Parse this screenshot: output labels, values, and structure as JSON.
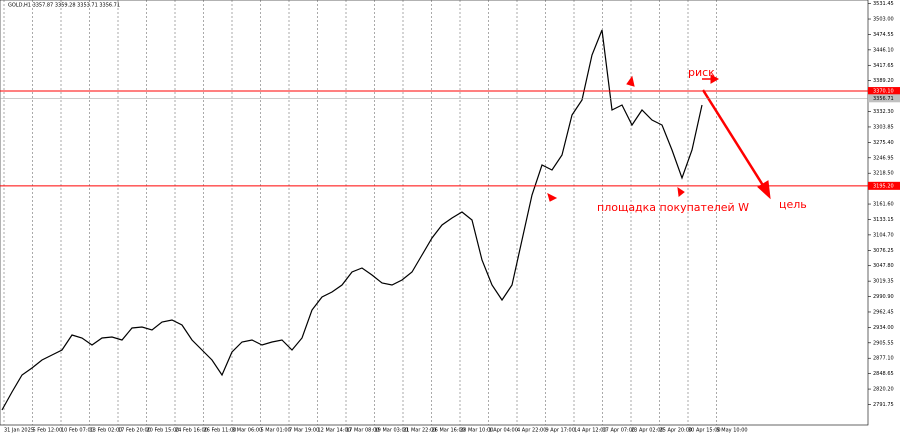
{
  "chart_data": {
    "type": "line",
    "title": "GOLD,H1  3357.87 3359.28 3353.71 3356.71",
    "color": "#000000",
    "values": [
      2781.6,
      2814.8,
      2846.2,
      2859.1,
      2873.9,
      2883.1,
      2892.3,
      2920.0,
      2914.4,
      2901.5,
      2914.4,
      2916.3,
      2910.8,
      2932.9,
      2934.7,
      2929.2,
      2944.0,
      2947.7,
      2938.4,
      2910.8,
      2892.3,
      2873.9,
      2846.2,
      2888.6,
      2907.1,
      2910.8,
      2901.5,
      2907.1,
      2910.8,
      2892.3,
      2914.4,
      2966.1,
      2990.1,
      2999.3,
      3012.2,
      3036.2,
      3043.6,
      3030.7,
      3015.9,
      3012.2,
      3021.5,
      3036.2,
      3067.6,
      3098.9,
      3122.9,
      3135.8,
      3146.9,
      3132.2,
      3058.4,
      3012.2,
      2984.6,
      3012.2,
      3095.3,
      3178.3,
      3233.6,
      3224.4,
      3252.1,
      3325.9,
      3353.6,
      3436.6,
      3482.7,
      3335.1,
      3344.3,
      3307.4,
      3335.1,
      3316.7,
      3307.4,
      3261.3,
      3209.6,
      3261.3,
      3344.3
    ],
    "xtick_labels": [
      "31 Jan 2025",
      "5 Feb 12:00",
      "10 Feb 07:00",
      "13 Feb 02:00",
      "17 Feb 20:00",
      "20 Feb 15:00",
      "24 Feb 16:00",
      "26 Feb 11:00",
      "3 Mar 06:00",
      "5 Mar 01:00",
      "7 Mar 19:00",
      "12 Mar 14:00",
      "17 Mar 08:00",
      "19 Mar 03:00",
      "21 Mar 22:00",
      "26 Mar 16:00",
      "28 Mar 10:00",
      "1 Apr 04:00",
      "4 Apr 22:00",
      "9 Apr 17:00",
      "14 Apr 12:00",
      "17 Apr 07:00",
      "23 Apr 02:00",
      "25 Apr 20:00",
      "30 Apr 15:00",
      "5 May 10:00"
    ],
    "ylim": [
      2753.9,
      3538.1
    ],
    "yticks": [
      {
        "value": 3531.45,
        "label": "3531.45"
      },
      {
        "value": 3503.0,
        "label": "3503.00"
      },
      {
        "value": 3474.55,
        "label": "3474.55"
      },
      {
        "value": 3446.1,
        "label": "3446.10"
      },
      {
        "value": 3417.65,
        "label": "3417.65"
      },
      {
        "value": 3389.2,
        "label": "3389.20"
      },
      {
        "value": 3332.3,
        "label": "3332.30"
      },
      {
        "value": 3303.85,
        "label": "3303.85"
      },
      {
        "value": 3275.4,
        "label": "3275.40"
      },
      {
        "value": 3246.95,
        "label": "3246.95"
      },
      {
        "value": 3218.5,
        "label": "3218.50"
      },
      {
        "value": 3161.6,
        "label": "3161.60"
      },
      {
        "value": 3133.15,
        "label": "3133.15"
      },
      {
        "value": 3104.7,
        "label": "3104.70"
      },
      {
        "value": 3076.25,
        "label": "3076.25"
      },
      {
        "value": 3047.8,
        "label": "3047.80"
      },
      {
        "value": 3019.35,
        "label": "3019.35"
      },
      {
        "value": 2990.9,
        "label": "2990.90"
      },
      {
        "value": 2962.45,
        "label": "2962.45"
      },
      {
        "value": 2934.0,
        "label": "2934.00"
      },
      {
        "value": 2905.55,
        "label": "2905.55"
      },
      {
        "value": 2877.1,
        "label": "2877.10"
      },
      {
        "value": 2848.65,
        "label": "2848.65"
      },
      {
        "value": 2820.2,
        "label": "2820.20"
      },
      {
        "value": 2791.75,
        "label": "2791.75"
      }
    ],
    "levels": [
      {
        "value": 3370.1,
        "label": "3370.10"
      },
      {
        "value": 3195.2,
        "label": "3195.20"
      }
    ],
    "level_color": "#ff0000",
    "current_price": {
      "value": 3356.71,
      "label": "3356.71"
    },
    "annotations": [
      "риск",
      "площадка покупателей W",
      "цель"
    ]
  }
}
